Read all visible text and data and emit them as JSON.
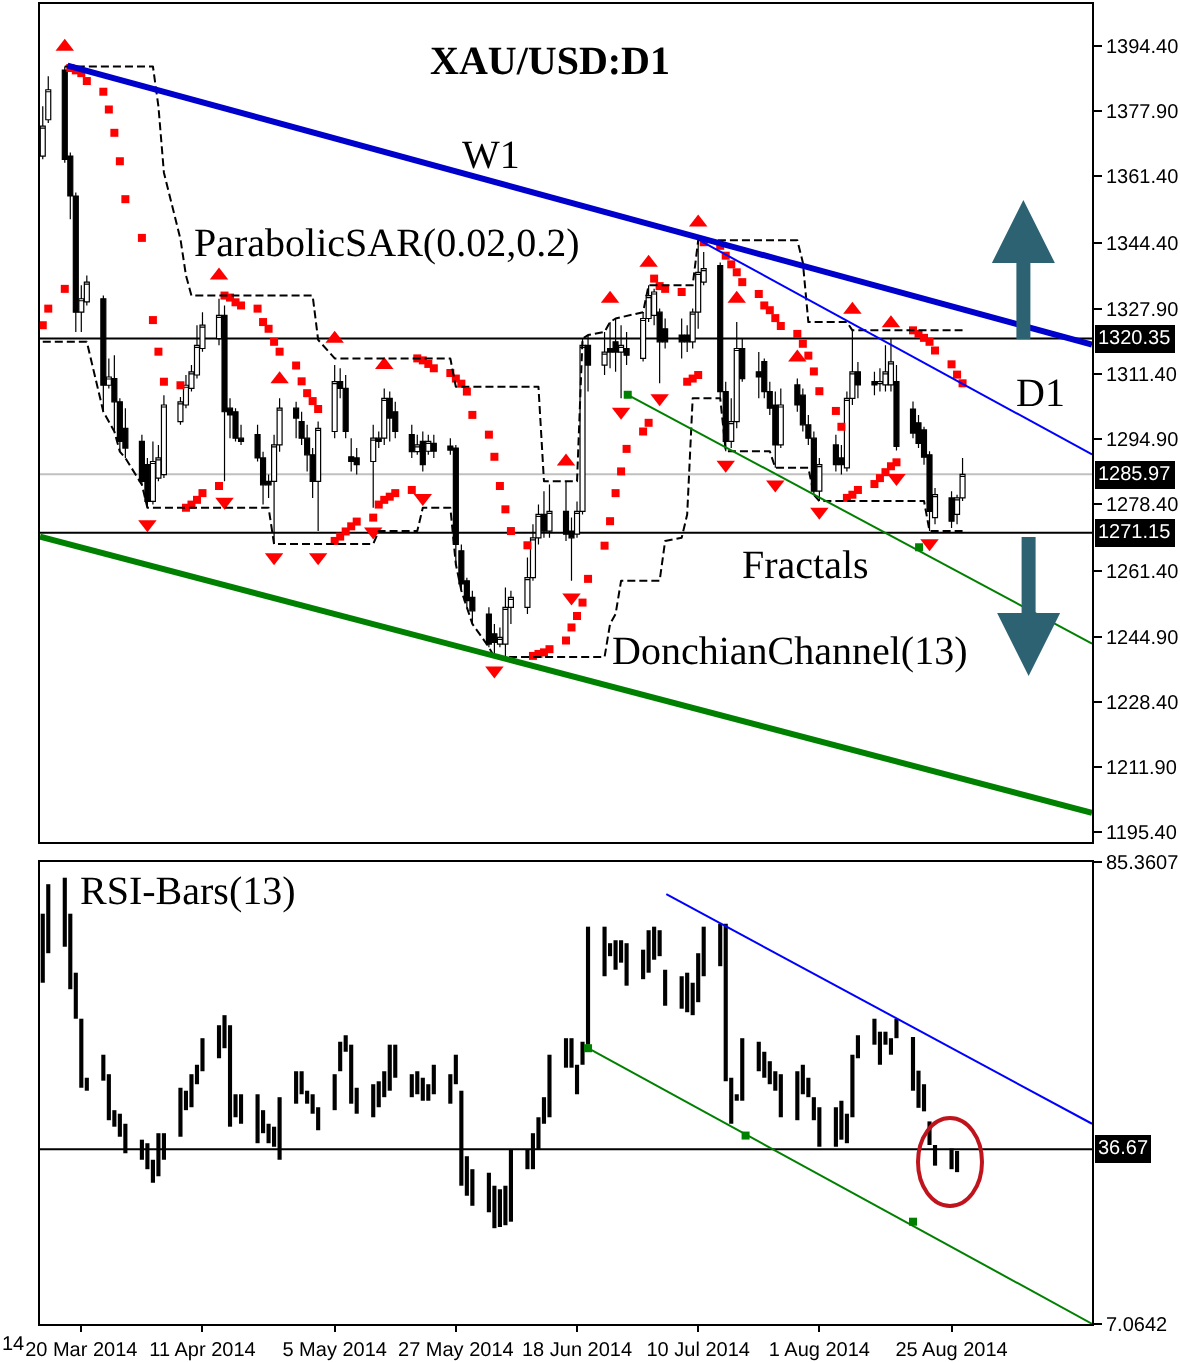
{
  "chart_data": [
    {
      "type": "candlestick",
      "title": "XAU/USD:D1",
      "color": "#000000",
      "x": [
        "2014-03-13",
        "2014-03-14",
        "2014-03-17",
        "2014-03-18",
        "2014-03-19",
        "2014-03-20",
        "2014-03-21",
        "2014-03-24",
        "2014-03-25",
        "2014-03-26",
        "2014-03-27",
        "2014-03-28",
        "2014-03-31",
        "2014-04-01",
        "2014-04-02",
        "2014-04-03",
        "2014-04-04",
        "2014-04-07",
        "2014-04-08",
        "2014-04-09",
        "2014-04-10",
        "2014-04-11",
        "2014-04-14",
        "2014-04-15",
        "2014-04-16",
        "2014-04-17",
        "2014-04-18",
        "2014-04-21",
        "2014-04-22",
        "2014-04-23",
        "2014-04-24",
        "2014-04-25",
        "2014-04-28",
        "2014-04-29",
        "2014-04-30",
        "2014-05-01",
        "2014-05-02",
        "2014-05-05",
        "2014-05-06",
        "2014-05-07",
        "2014-05-08",
        "2014-05-09",
        "2014-05-12",
        "2014-05-13",
        "2014-05-14",
        "2014-05-15",
        "2014-05-16",
        "2014-05-19",
        "2014-05-20",
        "2014-05-21",
        "2014-05-22",
        "2014-05-23",
        "2014-05-26",
        "2014-05-27",
        "2014-05-28",
        "2014-05-29",
        "2014-05-30",
        "2014-06-02",
        "2014-06-03",
        "2014-06-04",
        "2014-06-05",
        "2014-06-06",
        "2014-06-09",
        "2014-06-10",
        "2014-06-11",
        "2014-06-12",
        "2014-06-13",
        "2014-06-16",
        "2014-06-17",
        "2014-06-18",
        "2014-06-19",
        "2014-06-20",
        "2014-06-23",
        "2014-06-24",
        "2014-06-25",
        "2014-06-26",
        "2014-06-27",
        "2014-06-30",
        "2014-07-01",
        "2014-07-02",
        "2014-07-03",
        "2014-07-04",
        "2014-07-07",
        "2014-07-08",
        "2014-07-09",
        "2014-07-10",
        "2014-07-11",
        "2014-07-14",
        "2014-07-15",
        "2014-07-16",
        "2014-07-17",
        "2014-07-18",
        "2014-07-21",
        "2014-07-22",
        "2014-07-23",
        "2014-07-24",
        "2014-07-25",
        "2014-07-28",
        "2014-07-29",
        "2014-07-30",
        "2014-07-31",
        "2014-08-01",
        "2014-08-04",
        "2014-08-05",
        "2014-08-06",
        "2014-08-07",
        "2014-08-08",
        "2014-08-11",
        "2014-08-12",
        "2014-08-13",
        "2014-08-14",
        "2014-08-15",
        "2014-08-18",
        "2014-08-19",
        "2014-08-20",
        "2014-08-21",
        "2014-08-22",
        "2014-08-25",
        "2014-08-26",
        "2014-08-27"
      ],
      "ohlc": [
        [
          1366.5,
          1379.1,
          1365.7,
          1374.1
        ],
        [
          1375.7,
          1386.7,
          1374.9,
          1383.3
        ],
        [
          1388.3,
          1389.2,
          1364.8,
          1365.7
        ],
        [
          1366.5,
          1367.4,
          1350.5,
          1356.4
        ],
        [
          1356.4,
          1357.3,
          1322.0,
          1327.0
        ],
        [
          1327.0,
          1333.8,
          1322.0,
          1330.4
        ],
        [
          1329.6,
          1336.3,
          1328.7,
          1334.6
        ],
        [
          1330.4,
          1331.2,
          1301.8,
          1308.5
        ],
        [
          1308.5,
          1315.3,
          1307.7,
          1310.6
        ],
        [
          1310.2,
          1316.1,
          1296.8,
          1304.3
        ],
        [
          1304.3,
          1305.2,
          1291.7,
          1294.3
        ],
        [
          1297.6,
          1302.7,
          1290.1,
          1292.6
        ],
        [
          1294.3,
          1296.0,
          1283.3,
          1284.2
        ],
        [
          1288.4,
          1290.1,
          1277.5,
          1279.1
        ],
        [
          1279.1,
          1294.3,
          1278.3,
          1289.2
        ],
        [
          1285.0,
          1293.4,
          1284.2,
          1290.1
        ],
        [
          1285.9,
          1306.0,
          1285.0,
          1303.5
        ],
        [
          1299.3,
          1305.5,
          1298.5,
          1304.3
        ],
        [
          1303.5,
          1311.1,
          1302.7,
          1308.5
        ],
        [
          1307.7,
          1313.6,
          1306.9,
          1311.9
        ],
        [
          1311.1,
          1323.7,
          1310.2,
          1318.6
        ],
        [
          1317.8,
          1327.0,
          1317.0,
          1323.7
        ],
        [
          1320.3,
          1330.4,
          1318.6,
          1326.2
        ],
        [
          1326.2,
          1328.7,
          1284.2,
          1301.8
        ],
        [
          1302.7,
          1305.2,
          1295.1,
          1301.0
        ],
        [
          1301.8,
          1302.7,
          1294.3,
          1295.1
        ],
        [
          1295.1,
          1298.5,
          1293.4,
          1294.3
        ],
        [
          1296.0,
          1298.5,
          1289.2,
          1290.1
        ],
        [
          1290.1,
          1291.7,
          1278.3,
          1283.3
        ],
        [
          1284.2,
          1285.9,
          1280.0,
          1283.3
        ],
        [
          1284.2,
          1296.0,
          1268.3,
          1293.4
        ],
        [
          1293.4,
          1305.2,
          1291.7,
          1302.7
        ],
        [
          1302.7,
          1304.3,
          1295.1,
          1300.2
        ],
        [
          1299.3,
          1301.8,
          1293.4,
          1295.1
        ],
        [
          1295.1,
          1298.5,
          1286.7,
          1290.9
        ],
        [
          1290.9,
          1292.6,
          1280.0,
          1284.2
        ],
        [
          1284.2,
          1299.3,
          1271.6,
          1297.6
        ],
        [
          1296.8,
          1313.6,
          1295.1,
          1309.4
        ],
        [
          1309.4,
          1312.8,
          1305.2,
          1307.7
        ],
        [
          1307.7,
          1311.1,
          1295.1,
          1296.8
        ],
        [
          1290.4,
          1295.1,
          1286.7,
          1289.2
        ],
        [
          1290.1,
          1292.6,
          1285.9,
          1288.4
        ],
        [
          1289.2,
          1298.5,
          1277.5,
          1295.1
        ],
        [
          1295.1,
          1296.8,
          1292.6,
          1294.3
        ],
        [
          1295.1,
          1307.7,
          1293.4,
          1305.2
        ],
        [
          1305.2,
          1306.9,
          1294.3,
          1300.2
        ],
        [
          1301.8,
          1304.3,
          1295.1,
          1296.8
        ],
        [
          1296.0,
          1298.5,
          1290.1,
          1291.7
        ],
        [
          1291.7,
          1296.0,
          1290.9,
          1293.4
        ],
        [
          1294.3,
          1296.8,
          1286.7,
          1288.4
        ],
        [
          1291.8,
          1296.0,
          1290.9,
          1294.3
        ],
        [
          1293.8,
          1296.0,
          1290.1,
          1291.8
        ],
        [
          1293.1,
          1295.1,
          1290.9,
          1292.1
        ],
        [
          1292.6,
          1293.4,
          1263.2,
          1268.2
        ],
        [
          1266.6,
          1268.2,
          1256.5,
          1258.2
        ],
        [
          1259.0,
          1259.8,
          1252.3,
          1254.0
        ],
        [
          1254.8,
          1256.5,
          1248.1,
          1251.4
        ],
        [
          1250.6,
          1252.3,
          1242.2,
          1243.0
        ],
        [
          1245.6,
          1248.1,
          1239.7,
          1243.4
        ],
        [
          1243.0,
          1247.2,
          1242.2,
          1244.7
        ],
        [
          1243.0,
          1257.3,
          1239.7,
          1252.3
        ],
        [
          1252.3,
          1256.5,
          1248.1,
          1254.8
        ],
        [
          1252.3,
          1264.9,
          1250.6,
          1259.8
        ],
        [
          1259.8,
          1273.3,
          1259.0,
          1269.9
        ],
        [
          1269.9,
          1278.3,
          1268.2,
          1275.8
        ],
        [
          1275.8,
          1281.7,
          1269.9,
          1271.6
        ],
        [
          1271.6,
          1283.4,
          1269.9,
          1276.6
        ],
        [
          1276.6,
          1284.2,
          1269.1,
          1270.8
        ],
        [
          1271.6,
          1275.0,
          1259.0,
          1269.9
        ],
        [
          1270.8,
          1279.1,
          1269.9,
          1276.6
        ],
        [
          1276.6,
          1320.3,
          1275.8,
          1318.6
        ],
        [
          1318.6,
          1321.2,
          1306.9,
          1313.6
        ],
        [
          1313.6,
          1322.0,
          1311.1,
          1316.9
        ],
        [
          1317.8,
          1324.5,
          1312.8,
          1316.9
        ],
        [
          1319.5,
          1325.4,
          1311.9,
          1316.9
        ],
        [
          1316.9,
          1323.7,
          1305.2,
          1318.6
        ],
        [
          1317.8,
          1322.0,
          1313.6,
          1316.1
        ],
        [
          1315.3,
          1327.0,
          1314.5,
          1325.4
        ],
        [
          1325.4,
          1333.8,
          1324.5,
          1331.2
        ],
        [
          1326.2,
          1332.9,
          1323.7,
          1332.1
        ],
        [
          1327.0,
          1327.9,
          1309.0,
          1319.5
        ],
        [
          1322.8,
          1325.4,
          1317.8,
          1319.5
        ],
        [
          1321.2,
          1325.4,
          1315.3,
          1319.5
        ],
        [
          1321.2,
          1323.7,
          1316.9,
          1319.5
        ],
        [
          1319.5,
          1327.9,
          1317.8,
          1327.0
        ],
        [
          1327.0,
          1345.2,
          1322.8,
          1337.1
        ],
        [
          1334.6,
          1342.2,
          1333.8,
          1338.0
        ],
        [
          1338.8,
          1339.6,
          1305.2,
          1306.9
        ],
        [
          1306.9,
          1309.4,
          1291.8,
          1294.3
        ],
        [
          1294.3,
          1305.2,
          1292.6,
          1299.3
        ],
        [
          1299.3,
          1324.5,
          1297.6,
          1317.8
        ],
        [
          1317.8,
          1320.3,
          1309.4,
          1310.2
        ],
        [
          1311.9,
          1316.9,
          1305.2,
          1310.6
        ],
        [
          1314.5,
          1315.3,
          1305.2,
          1306.9
        ],
        [
          1306.9,
          1309.4,
          1301.0,
          1302.7
        ],
        [
          1303.5,
          1306.9,
          1287.6,
          1293.4
        ],
        [
          1293.4,
          1307.7,
          1292.6,
          1303.5
        ],
        [
          1308.6,
          1310.2,
          1301.8,
          1303.5
        ],
        [
          1306.0,
          1307.7,
          1296.8,
          1298.5
        ],
        [
          1298.5,
          1301.0,
          1293.4,
          1295.1
        ],
        [
          1295.1,
          1296.8,
          1280.8,
          1281.7
        ],
        [
          1281.7,
          1290.1,
          1279.2,
          1288.4
        ],
        [
          1293.4,
          1296.0,
          1286.7,
          1288.4
        ],
        [
          1290.1,
          1293.4,
          1285.9,
          1288.4
        ],
        [
          1287.6,
          1306.9,
          1286.7,
          1305.2
        ],
        [
          1305.2,
          1322.4,
          1303.5,
          1311.9
        ],
        [
          1311.9,
          1314.4,
          1305.2,
          1308.6
        ],
        [
          1309.4,
          1311.9,
          1306.0,
          1308.6
        ],
        [
          1308.9,
          1312.8,
          1306.9,
          1309.4
        ],
        [
          1308.6,
          1318.6,
          1306.9,
          1311.9
        ],
        [
          1308.6,
          1320.3,
          1306.9,
          1314.4
        ],
        [
          1309.4,
          1313.6,
          1292.0,
          1293.0
        ],
        [
          1302.5,
          1304.4,
          1295.1,
          1296.4
        ],
        [
          1299.0,
          1301.0,
          1292.6,
          1293.8
        ],
        [
          1297.2,
          1298.0,
          1288.4,
          1290.3
        ],
        [
          1290.9,
          1291.8,
          1271.6,
          1276.6
        ],
        [
          1275.0,
          1282.5,
          1273.3,
          1280.8
        ],
        [
          1280.0,
          1281.7,
          1272.4,
          1274.1
        ],
        [
          1275.8,
          1280.8,
          1273.3,
          1280.0
        ],
        [
          1280.0,
          1290.1,
          1279.2,
          1285.97
        ]
      ],
      "xlim": [
        "2014-03-12T12:00",
        "2014-09-19T12:00"
      ],
      "ylim": [
        1192.9,
        1405.0
      ],
      "yticks": [
        {
          "value": 1394.4,
          "label": "1394.40"
        },
        {
          "value": 1377.9,
          "label": "1377.90"
        },
        {
          "value": 1361.4,
          "label": "1361.40"
        },
        {
          "value": 1344.4,
          "label": "1344.40"
        },
        {
          "value": 1327.9,
          "label": "1327.90"
        },
        {
          "value": 1311.4,
          "label": "1311.40"
        },
        {
          "value": 1294.9,
          "label": "1294.90"
        },
        {
          "value": 1278.4,
          "label": "1278.40"
        },
        {
          "value": 1261.4,
          "label": "1261.40"
        },
        {
          "value": 1244.9,
          "label": "1244.90"
        },
        {
          "value": 1228.4,
          "label": "1228.40"
        },
        {
          "value": 1211.9,
          "label": "1211.90"
        },
        {
          "value": 1195.4,
          "label": "1195.40"
        }
      ],
      "tick_labels": "y",
      "series": [
        {
          "type": "scatter",
          "marker": "square",
          "color": "#ff0000",
          "values": [
            1323.7,
            1327.9,
            1332.9,
            1388.8,
            1388.2,
            1387.5,
            1385.5,
            1382.8,
            1378.3,
            1372.4,
            1365.2,
            1355.6,
            1345.8,
            null,
            1325.0,
            1317.0,
            1309.4,
            1308.5,
            1277.5,
            1278.3,
            1279.5,
            1281.2,
            1283.0,
            1331.2,
            1330.7,
            1329.5,
            1328.7,
            1327.9,
            1324.5,
            1322.8,
            1319.5,
            1317.0,
            1313.5,
            1309.5,
            1306.5,
            1304.5,
            1302.5,
            1269.1,
            1270.2,
            1271.5,
            1272.8,
            1274.0,
            1275.0,
            1278.3,
            1279.5,
            1280.3,
            1281.2,
            1282.0,
            1315.3,
            1314.8,
            1313.9,
            1312.8,
            1311.6,
            1310.2,
            1308.9,
            1306.9,
            1301.0,
            1296.0,
            1290.4,
            1283.0,
            1277.1,
            1271.6,
            1268.0,
            1240.0,
            1240.5,
            1240.9,
            1241.7,
            1243.9,
            1247.2,
            1250.1,
            1253.5,
            1259.5,
            1267.9,
            1274.1,
            1281.2,
            1286.7,
            1292.4,
            1296.8,
            1299.0,
            1335.5,
            1333.6,
            1332.9,
            1332.1,
            1309.4,
            1310.2,
            1311.1,
            1344.7,
            1343.8,
            1341.3,
            1339.1,
            1337.1,
            1334.6,
            1331.6,
            1328.7,
            1327.5,
            1325.5,
            1323.5,
            1321.5,
            1319.0,
            1316.0,
            1312.0,
            1307.0,
            1302.0,
            1298.0,
            1280.0,
            1280.8,
            1282.0,
            1283.5,
            1285.0,
            1286.5,
            1288.0,
            1289.0,
            1322.4,
            1321.5,
            1320.5,
            1319.5,
            1317.3,
            1313.8,
            1311.2,
            1309.0
          ]
        },
        {
          "type": "scatter",
          "marker": "triangle",
          "color": "#ff0000",
          "x": [
            "2014-03-17",
            "2014-04-14",
            "2014-04-25",
            "2014-05-05",
            "2014-05-14",
            "2014-06-16",
            "2014-06-24",
            "2014-07-01",
            "2014-07-10",
            "2014-07-17",
            "2014-07-28",
            "2014-08-07",
            "2014-08-14"
          ],
          "values": [
            1394.2,
            1336.3,
            1310.0,
            1320.3,
            1313.6,
            1289.2,
            1330.4,
            1339.5,
            1349.7,
            1330.4,
            1315.5,
            1327.6,
            1324.2
          ]
        },
        {
          "type": "scatter",
          "marker": "triangle",
          "color": "#ff0000",
          "x": [
            "2014-04-01",
            "2014-04-15",
            "2014-04-24",
            "2014-05-02",
            "2014-05-12",
            "2014-05-21",
            "2014-06-03",
            "2014-06-17",
            "2014-06-26",
            "2014-07-03",
            "2014-07-15",
            "2014-07-24",
            "2014-08-01",
            "2014-08-15",
            "2014-08-21"
          ],
          "values": [
            1273.3,
            1279.0,
            1265.0,
            1265.0,
            1271.5,
            1280.0,
            1236.3,
            1254.8,
            1301.8,
            1305.2,
            1288.4,
            1283.4,
            1276.5,
            1285.0,
            1268.5
          ]
        },
        {
          "type": "line",
          "line_style": "dashed",
          "color": "#000000",
          "x": [
            "2014-03-17",
            "2014-04-02",
            "2014-04-03",
            "2014-04-04",
            "2014-04-07",
            "2014-04-08",
            "2014-04-09",
            "2014-05-01",
            "2014-05-02",
            "2014-05-05",
            "2014-05-26",
            "2014-05-27",
            "2014-06-11",
            "2014-06-12",
            "2014-06-18",
            "2014-06-19",
            "2014-06-20",
            "2014-06-23",
            "2014-06-24",
            "2014-06-25",
            "2014-06-30",
            "2014-07-01",
            "2014-07-09",
            "2014-07-10",
            "2014-07-28",
            "2014-07-29",
            "2014-07-30",
            "2014-08-06",
            "2014-08-07",
            "2014-08-27"
          ],
          "values": [
            1389.2,
            1389.2,
            1379.1,
            1362.3,
            1345.5,
            1336.3,
            1331.2,
            1331.2,
            1320.0,
            1315.3,
            1315.3,
            1308.1,
            1308.1,
            1284.2,
            1284.2,
            1320.3,
            1321.2,
            1322.0,
            1324.5,
            1325.4,
            1327.0,
            1333.8,
            1333.8,
            1345.2,
            1345.2,
            1339.6,
            1324.5,
            1324.5,
            1322.4,
            1322.4
          ]
        },
        {
          "type": "line",
          "line_style": "dashed",
          "color": "#000000",
          "x": [
            "2014-03-13",
            "2014-03-21",
            "2014-03-24",
            "2014-03-26",
            "2014-03-27",
            "2014-03-28",
            "2014-03-31",
            "2014-04-01",
            "2014-04-23",
            "2014-04-24",
            "2014-05-12",
            "2014-05-13",
            "2014-05-20",
            "2014-05-21",
            "2014-05-26",
            "2014-05-27",
            "2014-05-28",
            "2014-05-29",
            "2014-05-30",
            "2014-06-02",
            "2014-06-03",
            "2014-06-23",
            "2014-06-24",
            "2014-06-25",
            "2014-06-26",
            "2014-07-03",
            "2014-07-04",
            "2014-07-07",
            "2014-07-08",
            "2014-07-09",
            "2014-07-14",
            "2014-07-15",
            "2014-07-23",
            "2014-07-24",
            "2014-07-30",
            "2014-07-31",
            "2014-08-01",
            "2014-08-20",
            "2014-08-21",
            "2014-08-27"
          ],
          "values": [
            1319.5,
            1319.5,
            1301.8,
            1296.8,
            1291.7,
            1290.1,
            1283.3,
            1277.5,
            1277.5,
            1268.3,
            1268.3,
            1271.6,
            1271.6,
            1277.5,
            1277.5,
            1263.2,
            1256.5,
            1252.3,
            1248.1,
            1242.2,
            1239.7,
            1239.7,
            1248.1,
            1250.6,
            1259.0,
            1259.0,
            1269.1,
            1269.9,
            1275.8,
            1305.2,
            1305.2,
            1291.8,
            1291.8,
            1287.6,
            1287.6,
            1280.8,
            1279.2,
            1279.2,
            1271.6,
            1271.6
          ]
        },
        {
          "type": "line",
          "color": "#0000cc",
          "x": [
            "2014-03-17T12:00",
            "2014-09-19T12:00"
          ],
          "values": [
            1389.4,
            1318.8
          ]
        },
        {
          "type": "line",
          "color": "#0000ff",
          "x": [
            "2014-07-10T12:00",
            "2014-09-19T12:00"
          ],
          "values": [
            1345.0,
            1291.0
          ]
        },
        {
          "type": "line",
          "color": "#008000",
          "x": [
            "2014-06-27T05:00",
            "2014-09-19T12:00"
          ],
          "values": [
            1306.1,
            1243.1
          ]
        },
        {
          "type": "scatter",
          "marker": "square",
          "color": "#008000",
          "x": [
            "2014-06-27T05:00",
            "2014-08-19T02:30"
          ],
          "values": [
            1306.1,
            1267.5
          ]
        },
        {
          "type": "line",
          "color": "#008000",
          "x": [
            "2014-03-12T12:00",
            "2014-09-19T12:00"
          ],
          "values": [
            1270.2,
            1200.3
          ]
        }
      ],
      "ref_lines": [
        {
          "axis": "y",
          "value": 1320.35,
          "label": "1320.35",
          "color": "#000000"
        },
        {
          "axis": "y",
          "value": 1285.97,
          "label": "1285.97",
          "color": "#c0c0c0"
        },
        {
          "axis": "y",
          "value": 1271.15,
          "label": "1271.15",
          "color": "#000000"
        }
      ],
      "annotations": [
        "W1",
        "ParabolicSAR(0.02,0.2)",
        "D1",
        "Fractals",
        "DonchianChannel(13)"
      ]
    },
    {
      "type": "bar",
      "color": "#000000",
      "x": [
        "2014-03-13",
        "2014-03-14",
        "2014-03-17",
        "2014-03-18",
        "2014-03-19",
        "2014-03-20",
        "2014-03-21",
        "2014-03-24",
        "2014-03-25",
        "2014-03-26",
        "2014-03-27",
        "2014-03-28",
        "2014-03-31",
        "2014-04-01",
        "2014-04-02",
        "2014-04-03",
        "2014-04-04",
        "2014-04-07",
        "2014-04-08",
        "2014-04-09",
        "2014-04-10",
        "2014-04-11",
        "2014-04-14",
        "2014-04-15",
        "2014-04-16",
        "2014-04-17",
        "2014-04-18",
        "2014-04-21",
        "2014-04-22",
        "2014-04-23",
        "2014-04-24",
        "2014-04-25",
        "2014-04-28",
        "2014-04-29",
        "2014-04-30",
        "2014-05-01",
        "2014-05-02",
        "2014-05-05",
        "2014-05-06",
        "2014-05-07",
        "2014-05-08",
        "2014-05-09",
        "2014-05-12",
        "2014-05-13",
        "2014-05-14",
        "2014-05-15",
        "2014-05-16",
        "2014-05-19",
        "2014-05-20",
        "2014-05-21",
        "2014-05-22",
        "2014-05-23",
        "2014-05-26",
        "2014-05-27",
        "2014-05-28",
        "2014-05-29",
        "2014-05-30",
        "2014-06-02",
        "2014-06-03",
        "2014-06-04",
        "2014-06-05",
        "2014-06-06",
        "2014-06-09",
        "2014-06-10",
        "2014-06-11",
        "2014-06-12",
        "2014-06-13",
        "2014-06-16",
        "2014-06-17",
        "2014-06-18",
        "2014-06-19",
        "2014-06-20",
        "2014-06-23",
        "2014-06-24",
        "2014-06-25",
        "2014-06-26",
        "2014-06-27",
        "2014-06-30",
        "2014-07-01",
        "2014-07-02",
        "2014-07-03",
        "2014-07-04",
        "2014-07-07",
        "2014-07-08",
        "2014-07-09",
        "2014-07-10",
        "2014-07-11",
        "2014-07-14",
        "2014-07-15",
        "2014-07-16",
        "2014-07-17",
        "2014-07-18",
        "2014-07-21",
        "2014-07-22",
        "2014-07-23",
        "2014-07-24",
        "2014-07-25",
        "2014-07-28",
        "2014-07-29",
        "2014-07-30",
        "2014-07-31",
        "2014-08-01",
        "2014-08-04",
        "2014-08-05",
        "2014-08-06",
        "2014-08-07",
        "2014-08-08",
        "2014-08-11",
        "2014-08-12",
        "2014-08-13",
        "2014-08-14",
        "2014-08-15",
        "2014-08-18",
        "2014-08-19",
        "2014-08-20",
        "2014-08-21",
        "2014-08-22",
        "2014-08-25",
        "2014-08-26"
      ],
      "base": [
        64.9,
        69.9,
        71.0,
        63.8,
        58.8,
        47.1,
        46.6,
        48.3,
        41.6,
        40.5,
        38.8,
        36.0,
        34.9,
        33.3,
        31.0,
        32.1,
        34.9,
        38.8,
        43.3,
        43.8,
        47.7,
        49.9,
        52.1,
        53.8,
        40.5,
        42.1,
        41.0,
        37.7,
        39.4,
        37.7,
        37.1,
        34.9,
        44.4,
        46.0,
        44.4,
        42.7,
        39.9,
        43.3,
        49.9,
        53.2,
        44.4,
        42.7,
        42.1,
        43.8,
        45.5,
        46.6,
        48.8,
        45.5,
        46.0,
        44.9,
        44.9,
        46.0,
        44.4,
        47.7,
        30.5,
        28.8,
        27.1,
        26.0,
        23.3,
        23.5,
        23.8,
        24.4,
        33.3,
        33.3,
        36.6,
        41.0,
        42.1,
        50.5,
        50.5,
        46.0,
        51.0,
        54.4,
        66.0,
        69.4,
        67.1,
        68.3,
        64.4,
        65.5,
        66.6,
        68.8,
        69.4,
        61.0,
        60.5,
        59.9,
        59.4,
        61.6,
        66.0,
        67.7,
        48.2,
        41.0,
        44.9,
        44.9,
        49.9,
        48.8,
        47.7,
        46.6,
        42.1,
        41.6,
        46.0,
        45.5,
        41.6,
        37.1,
        37.1,
        38.3,
        37.7,
        42.1,
        52.1,
        54.4,
        51.0,
        54.4,
        52.7,
        55.5,
        46.6,
        43.7,
        43.1,
        37.4,
        33.9,
        33.3,
        32.8
      ],
      "values": [
        11.7,
        11.7,
        11.7,
        12.8,
        7.8,
        11.7,
        2.2,
        4.4,
        7.8,
        2.8,
        3.9,
        5.0,
        3.4,
        4.4,
        3.9,
        7.3,
        4.5,
        8.3,
        3.3,
        5.6,
        3.3,
        5.6,
        5.6,
        5.6,
        17.2,
        3.9,
        5.0,
        8.3,
        3.9,
        3.3,
        3.4,
        10.6,
        5.5,
        3.9,
        2.2,
        3.3,
        3.9,
        6.1,
        5.0,
        2.8,
        10.0,
        4.4,
        5.6,
        4.4,
        4.4,
        7.8,
        5.6,
        3.9,
        3.9,
        3.9,
        2.8,
        5.0,
        5.0,
        5.0,
        16.1,
        6.7,
        6.2,
        6.7,
        7.2,
        6.4,
        6.7,
        12.2,
        3.3,
        6.1,
        5.5,
        4.5,
        10.6,
        5.0,
        5.0,
        5.0,
        3.9,
        20.0,
        8.4,
        2.2,
        5.0,
        3.8,
        7.2,
        5.0,
        7.2,
        5.6,
        4.4,
        6.1,
        5.5,
        6.7,
        5.5,
        8.3,
        8.4,
        7.2,
        26.7,
        7.8,
        1.1,
        10.6,
        5.0,
        4.4,
        3.9,
        3.3,
        7.3,
        8.3,
        5.0,
        3.3,
        3.9,
        6.7,
        6.7,
        6.6,
        5.0,
        10.6,
        3.9,
        4.4,
        5.6,
        2.2,
        2.8,
        3.3,
        9.1,
        6.3,
        4.6,
        4.0,
        3.5,
        3.5,
        3.6
      ],
      "xlim": [
        "2014-03-12T12:00",
        "2014-09-19T12:00"
      ],
      "ylim": [
        7.0642,
        85.3607
      ],
      "yticks": [
        85.3607,
        7.0642
      ],
      "xticks": [
        {
          "value": "2014-03-20",
          "label": "20 Mar 2014"
        },
        {
          "value": "2014-04-11",
          "label": "11 Apr 2014"
        },
        {
          "value": "2014-05-05",
          "label": "5 May 2014"
        },
        {
          "value": "2014-05-27",
          "label": "27 May 2014"
        },
        {
          "value": "2014-06-18",
          "label": "18 Jun 2014"
        },
        {
          "value": "2014-07-10",
          "label": "10 Jul 2014"
        },
        {
          "value": "2014-08-01",
          "label": "1 Aug 2014"
        },
        {
          "value": "2014-08-25",
          "label": "25 Aug 2014"
        }
      ],
      "series": [
        {
          "type": "line",
          "color": "#0000ff",
          "x": [
            "2014-07-04T05:00",
            "2014-09-19T12:00"
          ],
          "values": [
            79.9,
            41.0
          ]
        },
        {
          "type": "line",
          "color": "#008000",
          "x": [
            "2014-06-20",
            "2014-09-19T12:00"
          ],
          "values": [
            53.8,
            7.1
          ]
        },
        {
          "type": "scatter",
          "marker": "square",
          "color": "#008000",
          "x": [
            "2014-06-20",
            "2014-07-18T14:30",
            "2014-08-18"
          ],
          "values": [
            53.8,
            39.0,
            24.4
          ]
        }
      ],
      "ref_lines": [
        {
          "axis": "y",
          "value": 36.67,
          "label": "36.67",
          "color": "#000000"
        }
      ],
      "annotations": [
        "RSI-Bars(13)",
        "14"
      ]
    }
  ]
}
